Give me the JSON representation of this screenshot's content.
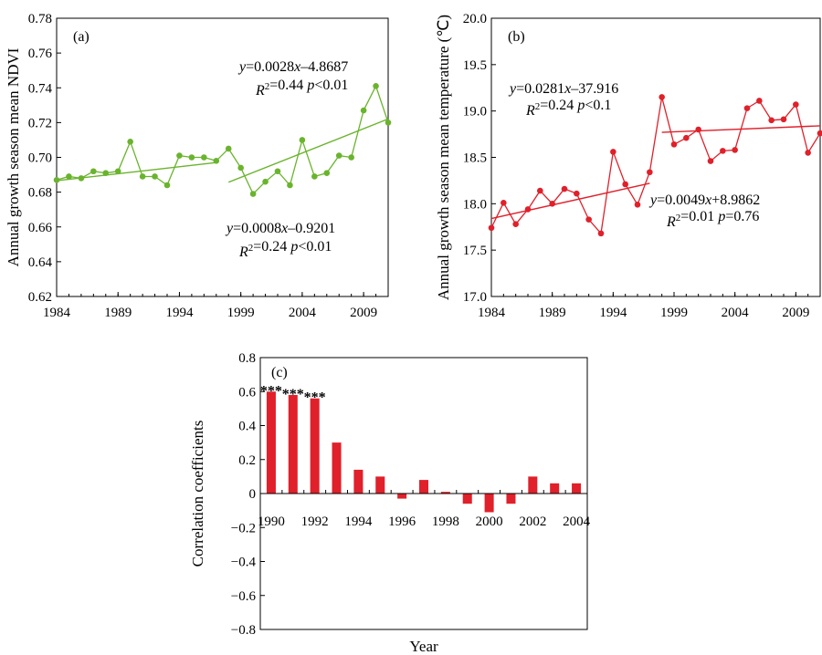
{
  "chart_data": [
    {
      "type": "line",
      "panel_label": "(a)",
      "ylabel": "Annual growth season mean NDVI",
      "xlim": [
        1984,
        2011
      ],
      "ylim": [
        0.62,
        0.78
      ],
      "yticks": [
        "0.62",
        "0.64",
        "0.66",
        "0.68",
        "0.70",
        "0.72",
        "0.74",
        "0.76",
        "0.78"
      ],
      "xticks": [
        "1984",
        "1989",
        "1994",
        "1999",
        "2004",
        "2009"
      ],
      "color": "#6ab42d",
      "x": [
        1984,
        1985,
        1986,
        1987,
        1988,
        1989,
        1990,
        1991,
        1992,
        1993,
        1994,
        1995,
        1996,
        1997,
        1998,
        1999,
        2000,
        2001,
        2002,
        2003,
        2004,
        2005,
        2006,
        2007,
        2008,
        2009,
        2010,
        2011
      ],
      "values": [
        0.687,
        0.689,
        0.688,
        0.692,
        0.691,
        0.692,
        0.709,
        0.689,
        0.689,
        0.684,
        0.701,
        0.7,
        0.7,
        0.698,
        0.705,
        0.694,
        0.679,
        0.686,
        0.692,
        0.684,
        0.71,
        0.689,
        0.691,
        0.701,
        0.7,
        0.727,
        0.741,
        0.72
      ],
      "trends": [
        {
          "x": [
            1984,
            1997
          ],
          "y": [
            0.6866,
            0.697
          ]
        },
        {
          "x": [
            1998,
            2011
          ],
          "y": [
            0.6857,
            0.7221
          ]
        }
      ],
      "annotations": [
        {
          "id": "eq1",
          "parts": [
            [
              "y",
              "i"
            ],
            [
              "=0.0028",
              ""
            ],
            [
              "x",
              "i"
            ],
            [
              "–4.8687",
              ""
            ]
          ]
        },
        {
          "id": "r1",
          "parts": [
            [
              "R",
              "i"
            ],
            [
              "2",
              "sup"
            ],
            [
              "=0.44 ",
              ""
            ],
            [
              "p",
              "i"
            ],
            [
              "<0.01",
              ""
            ]
          ]
        },
        {
          "id": "eq2",
          "parts": [
            [
              "y",
              "i"
            ],
            [
              "=0.0008",
              ""
            ],
            [
              "x",
              "i"
            ],
            [
              "–0.9201",
              ""
            ]
          ]
        },
        {
          "id": "r2",
          "parts": [
            [
              "R",
              "i"
            ],
            [
              "2",
              "sup"
            ],
            [
              "=0.24 ",
              ""
            ],
            [
              "p",
              "i"
            ],
            [
              "<0.01",
              ""
            ]
          ]
        }
      ]
    },
    {
      "type": "line",
      "panel_label": "(b)",
      "ylabel": "Annual growth season mean temperature (℃)",
      "xlim": [
        1984,
        2011
      ],
      "ylim": [
        17.0,
        20.0
      ],
      "yticks": [
        "17.0",
        "17.5",
        "18.0",
        "18.5",
        "19.0",
        "19.5",
        "20.0"
      ],
      "xticks": [
        "1984",
        "1989",
        "1994",
        "1999",
        "2004",
        "2009"
      ],
      "color": "#e0202a",
      "x": [
        1984,
        1985,
        1986,
        1987,
        1988,
        1989,
        1990,
        1991,
        1992,
        1993,
        1994,
        1995,
        1996,
        1997,
        1998,
        1999,
        2000,
        2001,
        2002,
        2003,
        2004,
        2005,
        2006,
        2007,
        2008,
        2009,
        2010,
        2011
      ],
      "values": [
        17.74,
        18.01,
        17.78,
        17.94,
        18.14,
        18.0,
        18.16,
        18.11,
        17.83,
        17.68,
        18.56,
        18.21,
        17.99,
        18.34,
        19.15,
        18.64,
        18.71,
        18.8,
        18.46,
        18.57,
        18.58,
        19.03,
        19.11,
        18.9,
        18.91,
        19.07,
        18.55,
        18.76
      ],
      "trends": [
        {
          "x": [
            1984,
            1997
          ],
          "y": [
            17.84,
            18.22
          ]
        },
        {
          "x": [
            1998,
            2011
          ],
          "y": [
            18.77,
            18.84
          ]
        }
      ],
      "annotations": [
        {
          "id": "eq1",
          "parts": [
            [
              "y",
              "i"
            ],
            [
              "=0.0281",
              ""
            ],
            [
              "x",
              "i"
            ],
            [
              "–37.916",
              ""
            ]
          ]
        },
        {
          "id": "r1",
          "parts": [
            [
              "R",
              "i"
            ],
            [
              "2",
              "sup"
            ],
            [
              "=0.24 ",
              ""
            ],
            [
              "p",
              "i"
            ],
            [
              "<0.1",
              ""
            ]
          ]
        },
        {
          "id": "eq2",
          "parts": [
            [
              "y",
              "i"
            ],
            [
              "=0.0049",
              ""
            ],
            [
              "x",
              "i"
            ],
            [
              "+8.9862",
              ""
            ]
          ]
        },
        {
          "id": "r2",
          "parts": [
            [
              "R",
              "i"
            ],
            [
              "2",
              "sup"
            ],
            [
              "=0.01 ",
              ""
            ],
            [
              "p",
              "i"
            ],
            [
              "=0.76",
              ""
            ]
          ]
        }
      ]
    },
    {
      "type": "bar",
      "panel_label": "(c)",
      "ylabel": "Correlation coefficients",
      "xlabel": "Year",
      "ylim": [
        -0.8,
        0.8
      ],
      "yticks": [
        "−0.8",
        "−0.6",
        "−0.4",
        "−0.2",
        "0",
        "0.2",
        "0.4",
        "0.6",
        "0.8"
      ],
      "color": "#e0202a",
      "categories": [
        "1990",
        "1991",
        "1992",
        "1993",
        "1994",
        "1995",
        "1996",
        "1997",
        "1998",
        "1999",
        "2000",
        "2001",
        "2002",
        "2003",
        "2004"
      ],
      "xtick_labels": [
        "1990",
        "1992",
        "1994",
        "1996",
        "1998",
        "2000",
        "2002",
        "2004"
      ],
      "values": [
        0.6,
        0.58,
        0.56,
        0.3,
        0.14,
        0.1,
        -0.03,
        0.08,
        0.01,
        -0.06,
        -0.11,
        -0.06,
        0.1,
        0.06,
        0.06
      ],
      "significance": [
        "***",
        "***",
        "***",
        "",
        "",
        "",
        "",
        "",
        "",
        "",
        "",
        "",
        "",
        "",
        ""
      ]
    }
  ]
}
